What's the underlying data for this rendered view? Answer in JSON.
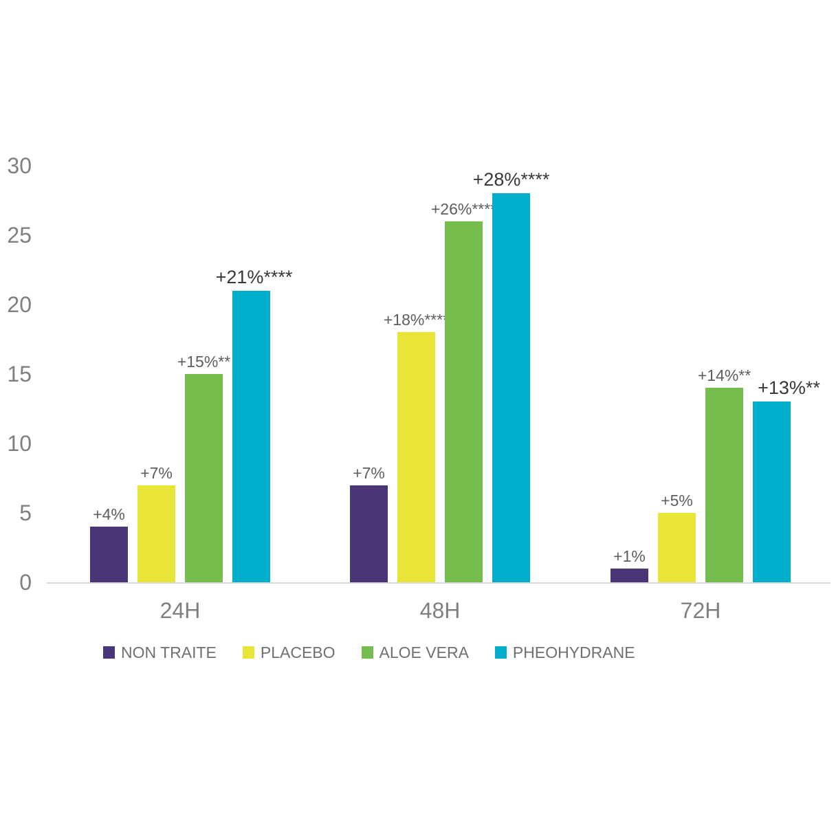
{
  "chart_data": {
    "type": "bar",
    "categories": [
      "24H",
      "48H",
      "72H"
    ],
    "series": [
      {
        "name": "NON TRAITE",
        "color": "#4a3577",
        "values": [
          4,
          7,
          1
        ],
        "labels": [
          "+4%",
          "+7%",
          "+1%"
        ],
        "label_emphasis": false,
        "label_dx": [
          0,
          0,
          0
        ]
      },
      {
        "name": "PLACEBO",
        "color": "#e9e438",
        "values": [
          7,
          18,
          5
        ],
        "labels": [
          "+7%",
          "+18%****",
          "+5%"
        ],
        "label_emphasis": false,
        "label_dx": [
          0,
          0,
          0
        ]
      },
      {
        "name": "ALOE VERA",
        "color": "#75bd4d",
        "values": [
          15,
          26,
          14
        ],
        "labels": [
          "+15%**",
          "+26%****",
          "+14%**"
        ],
        "label_emphasis": false,
        "label_dx": [
          0,
          0,
          0
        ]
      },
      {
        "name": "PHEOHYDRANE",
        "color": "#00adcb",
        "values": [
          21,
          28,
          13
        ],
        "labels": [
          "+21%****",
          "+28%****",
          "+13%**"
        ],
        "label_emphasis": true,
        "label_dx": [
          4,
          0,
          25
        ]
      }
    ],
    "y_axis": {
      "ticks": [
        0,
        5,
        10,
        15,
        20,
        25,
        30
      ],
      "ylim": [
        0,
        30
      ]
    },
    "x_axis": {
      "tick_labels": [
        "24H",
        "48H",
        "72H"
      ]
    },
    "legend": {
      "position": "bottom",
      "entries": [
        "NON TRAITE",
        "PLACEBO",
        "ALOE VERA",
        "PHEOHYDRANE"
      ]
    },
    "grid": "off",
    "colors": {
      "axis_line": "#d9d9d9",
      "axis_text": "#7f7f7f",
      "value_label_text": "#5d5d5d",
      "value_label_emphasis_text": "#383838",
      "legend_text": "#6f6f6f",
      "background": "#ffffff"
    }
  }
}
